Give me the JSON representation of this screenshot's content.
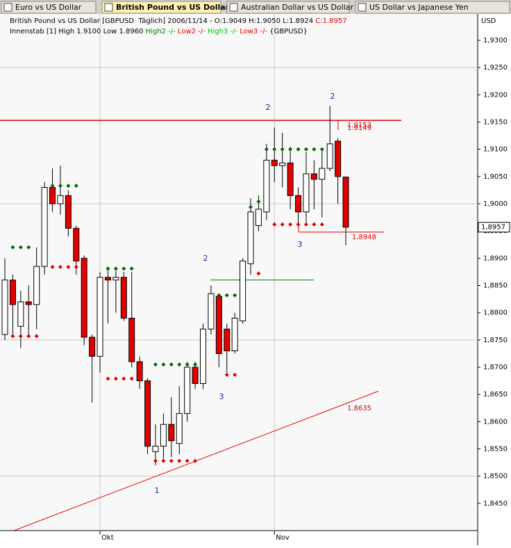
{
  "tabs": [
    "Euro vs US Dollar",
    "British Pound vs US Dollar",
    "Australian Dollar vs US Dollar",
    "US Dollar vs Japanese Yen"
  ],
  "header": {
    "line1": [
      {
        "text": "British Pound vs US Dollar [GBPUSD  Täglich] 2006/11/14 - O:1.9049 H:1.9050 L:1.8924 ",
        "color": "#000000"
      },
      {
        "text": "C:1.8957",
        "color": "#e00000"
      }
    ],
    "line2": [
      {
        "text": "Innenstab [1] High 1.9100 Low 1.8960 ",
        "color": "#000000"
      },
      {
        "text": "High2 -/-",
        "color": "#008000"
      },
      {
        "text": " Low2 -/-",
        "color": "#e00000"
      },
      {
        "text": " High3 -/-",
        "color": "#00c000"
      },
      {
        "text": " Low3 -/-",
        "color": "#e00000"
      },
      {
        "text": " {GBPUSD}",
        "color": "#000000"
      }
    ]
  },
  "chart_data": {
    "type": "candlestick",
    "axis_title": "USD",
    "categories": [
      null,
      null,
      null,
      null,
      null,
      null,
      null,
      null,
      null,
      null,
      null,
      null,
      "Okt",
      null,
      null,
      null,
      null,
      null,
      null,
      null,
      null,
      null,
      null,
      null,
      null,
      null,
      null,
      null,
      null,
      null,
      null,
      null,
      null,
      null,
      "Nov",
      null,
      null,
      null,
      null,
      null,
      null,
      null,
      null,
      null
    ],
    "open": [
      1.876,
      1.886,
      1.8775,
      1.882,
      1.8815,
      1.8885,
      1.903,
      1.9,
      1.9015,
      1.8955,
      1.89,
      1.8755,
      1.872,
      1.8865,
      1.886,
      1.8865,
      1.879,
      1.871,
      1.8675,
      1.8545,
      1.8555,
      1.8595,
      1.856,
      1.8615,
      1.87,
      1.867,
      1.877,
      1.883,
      1.877,
      1.873,
      1.8785,
      1.889,
      1.896,
      1.8985,
      1.908,
      1.907,
      1.9075,
      1.9015,
      1.8985,
      1.9055,
      1.9045,
      1.9065,
      1.9115,
      1.9049
    ],
    "high": [
      1.89,
      1.887,
      1.884,
      1.885,
      1.892,
      1.904,
      1.9065,
      1.907,
      1.9025,
      1.896,
      1.8905,
      1.876,
      1.8875,
      1.888,
      1.888,
      1.8875,
      1.8875,
      1.872,
      1.868,
      1.8595,
      1.8615,
      1.8645,
      1.8665,
      1.871,
      1.871,
      1.878,
      1.885,
      1.8835,
      1.878,
      1.88,
      1.89,
      1.901,
      1.9015,
      1.911,
      1.914,
      1.913,
      1.9105,
      1.903,
      1.9095,
      1.908,
      1.91,
      1.918,
      1.912,
      1.905
    ],
    "low": [
      1.875,
      1.8755,
      1.8735,
      1.876,
      1.877,
      1.887,
      1.8985,
      1.898,
      1.894,
      1.887,
      1.874,
      1.8635,
      1.869,
      1.878,
      1.88,
      1.8785,
      1.87,
      1.866,
      1.854,
      1.852,
      1.853,
      1.8535,
      1.854,
      1.86,
      1.866,
      1.866,
      1.876,
      1.87,
      1.869,
      1.8725,
      1.878,
      1.887,
      1.895,
      1.897,
      1.904,
      1.903,
      1.899,
      1.896,
      1.8965,
      1.899,
      1.8975,
      1.906,
      1.9,
      1.8924
    ],
    "close": [
      1.886,
      1.8815,
      1.882,
      1.8815,
      1.8885,
      1.903,
      1.9,
      1.9015,
      1.8955,
      1.8895,
      1.8755,
      1.872,
      1.8865,
      1.886,
      1.8865,
      1.879,
      1.871,
      1.8675,
      1.8555,
      1.8555,
      1.8595,
      1.8565,
      1.8615,
      1.87,
      1.867,
      1.877,
      1.8835,
      1.8725,
      1.873,
      1.879,
      1.8895,
      1.8985,
      1.899,
      1.908,
      1.907,
      1.9075,
      1.9015,
      1.8985,
      1.9055,
      1.9045,
      1.9065,
      1.911,
      1.905,
      1.8957
    ],
    "up_color": "#ffffff",
    "down_color": "#e00000",
    "high_markers": {
      "color": "#006400",
      "values": [
        null,
        1.892,
        1.892,
        1.892,
        null,
        null,
        1.9033,
        1.9033,
        1.9033,
        1.9033,
        null,
        null,
        null,
        1.8881,
        1.8881,
        1.8881,
        1.8881,
        null,
        null,
        1.8705,
        1.8705,
        1.8705,
        1.8705,
        1.8705,
        1.8705,
        null,
        null,
        1.8832,
        1.8832,
        1.8832,
        null,
        1.8994,
        1.9004,
        1.91,
        1.91,
        1.91,
        1.91,
        1.91,
        1.91,
        1.91,
        1.91,
        null,
        null,
        null
      ]
    },
    "low_markers": {
      "color": "#e00000",
      "values": [
        null,
        1.8757,
        1.8757,
        1.8757,
        1.8757,
        null,
        1.8884,
        1.8884,
        1.8884,
        1.8884,
        null,
        null,
        null,
        1.8679,
        1.8679,
        1.8679,
        1.8679,
        null,
        null,
        1.8528,
        1.8528,
        1.8528,
        1.8528,
        1.8528,
        1.8528,
        null,
        null,
        null,
        1.8686,
        1.8686,
        null,
        null,
        1.8872,
        null,
        1.8962,
        1.8962,
        1.8962,
        1.8962,
        1.8962,
        1.8962,
        1.8962,
        null,
        null,
        null
      ]
    },
    "hlines": [
      {
        "value": 1.9153,
        "color": "#e00000",
        "value_label": "1.9153"
      },
      {
        "value": 1.9149,
        "color": "#e00000",
        "value_label": "1.9149"
      },
      {
        "value": 1.8948,
        "color": "#e00000",
        "value_label": "1.8948"
      },
      {
        "value": 1.886,
        "color": "#008000"
      }
    ],
    "trendline": {
      "values": [
        1.84,
        1.8656
      ],
      "value": 1.8635,
      "value_label": "1.8635",
      "color": "#e00000"
    },
    "annotations": [
      "2",
      "2",
      "2",
      "3",
      "3",
      "1"
    ],
    "last_price": {
      "value": 1.8957,
      "label": "1,8957"
    },
    "ylim": [
      1.84,
      1.9323
    ],
    "yticks": [
      {
        "value": 1.845,
        "label": "1,8450"
      },
      {
        "value": 1.85,
        "label": "1,8500"
      },
      {
        "value": 1.855,
        "label": "1,8550"
      },
      {
        "value": 1.86,
        "label": "1,8600"
      },
      {
        "value": 1.865,
        "label": "1,8650"
      },
      {
        "value": 1.87,
        "label": "1,8700"
      },
      {
        "value": 1.875,
        "label": "1,8750"
      },
      {
        "value": 1.88,
        "label": "1,8800"
      },
      {
        "value": 1.885,
        "label": "1,8850"
      },
      {
        "value": 1.89,
        "label": "1,8900"
      },
      {
        "value": 1.895,
        "label": "1,8950"
      },
      {
        "value": 1.9,
        "label": "1,9000"
      },
      {
        "value": 1.905,
        "label": "1,9050"
      },
      {
        "value": 1.91,
        "label": "1,9100"
      },
      {
        "value": 1.915,
        "label": "1,9150"
      },
      {
        "value": 1.92,
        "label": "1,9200"
      },
      {
        "value": 1.925,
        "label": "1,9250"
      },
      {
        "value": 1.93,
        "label": "1,9300"
      }
    ]
  }
}
